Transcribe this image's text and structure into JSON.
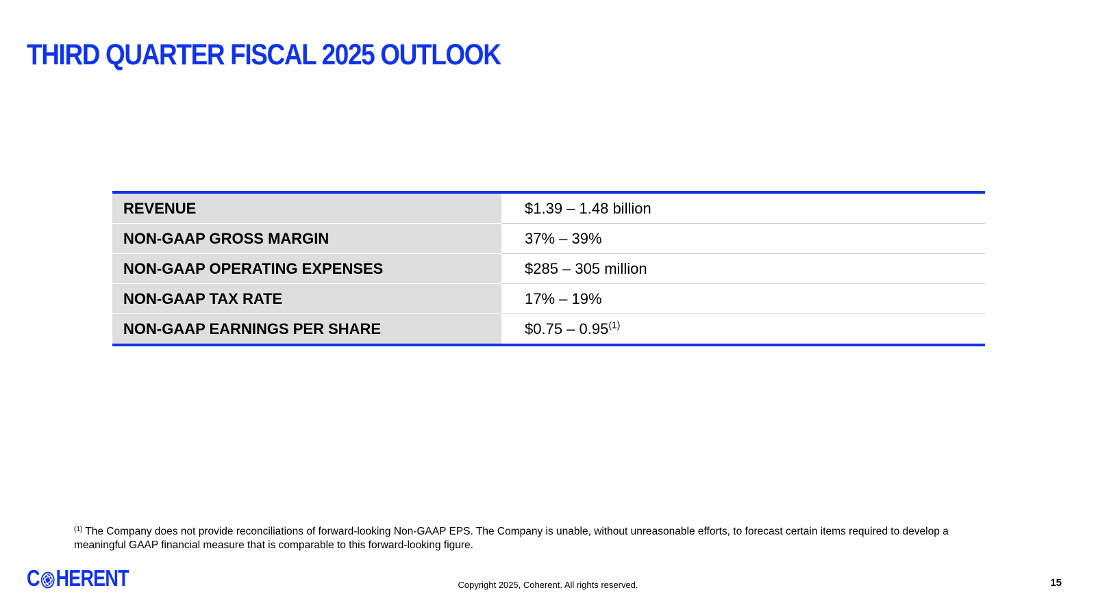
{
  "slide": {
    "title": "THIRD QUARTER FISCAL 2025 OUTLOOK",
    "page_number": "15"
  },
  "table": {
    "rows": [
      {
        "label": "REVENUE",
        "value": "$1.39 – 1.48 billion",
        "note": ""
      },
      {
        "label": "NON-GAAP GROSS MARGIN",
        "value": "37% – 39%",
        "note": ""
      },
      {
        "label": "NON-GAAP OPERATING EXPENSES",
        "value": "$285 – 305 million",
        "note": ""
      },
      {
        "label": "NON-GAAP TAX RATE",
        "value": "17% – 19%",
        "note": ""
      },
      {
        "label": "NON-GAAP EARNINGS PER SHARE",
        "value": "$0.75 – 0.95",
        "note": "(1)"
      }
    ]
  },
  "footnote": {
    "marker": "(1)",
    "text": " The Company does not provide reconciliations of forward-looking Non-GAAP EPS. The Company is unable, without unreasonable efforts, to forecast certain items required to develop a meaningful GAAP financial measure that is comparable to this forward-looking figure."
  },
  "footer": {
    "logo_text_first": "C",
    "logo_text_rest": "HERENT",
    "logo_icon": "globe-icon",
    "copyright": "Copyright 2025, Coherent. All rights reserved."
  },
  "colors": {
    "brand_blue": "#1034ea",
    "label_background": "#dedede"
  }
}
